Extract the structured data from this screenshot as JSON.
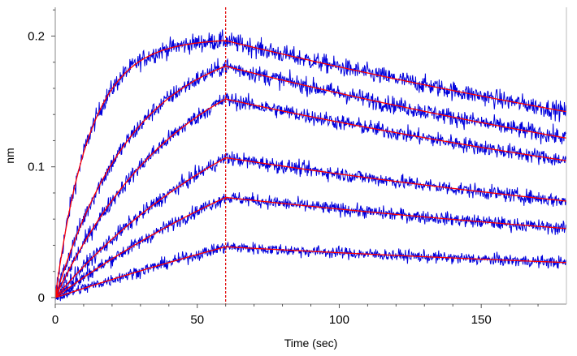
{
  "chart_data": {
    "type": "line",
    "title": "",
    "xlabel": "Time (sec)",
    "ylabel": "nm",
    "xlim": [
      0,
      180
    ],
    "ylim": [
      -0.005,
      0.222
    ],
    "grid": false,
    "legend": "none",
    "xticks": [
      0,
      50,
      100,
      150
    ],
    "xtick_labels": [
      "0",
      "50",
      "100",
      "150"
    ],
    "yticks": [
      0,
      0.1,
      0.2
    ],
    "ytick_labels": [
      "0",
      "0.1",
      "0.2"
    ],
    "association_end": 60,
    "marker_line": {
      "x": 60,
      "color": "#e00000",
      "style": "dashed"
    },
    "series_style": {
      "data_color": "#0000dd",
      "fit_color": "#ff0000"
    },
    "series": [
      {
        "plateau": 0.198,
        "ka": 0.082,
        "kd": 0.0027,
        "noise": 0.007
      },
      {
        "plateau": 0.2,
        "ka": 0.036,
        "kd": 0.0031,
        "noise": 0.0065
      },
      {
        "plateau": 0.205,
        "ka": 0.0225,
        "kd": 0.0031,
        "noise": 0.006
      },
      {
        "plateau": 0.205,
        "ka": 0.0123,
        "kd": 0.0031,
        "noise": 0.0055
      },
      {
        "plateau": 0.205,
        "ka": 0.0078,
        "kd": 0.0031,
        "noise": 0.005
      },
      {
        "plateau": 0.205,
        "ka": 0.0035,
        "kd": 0.0031,
        "noise": 0.0045
      }
    ]
  }
}
